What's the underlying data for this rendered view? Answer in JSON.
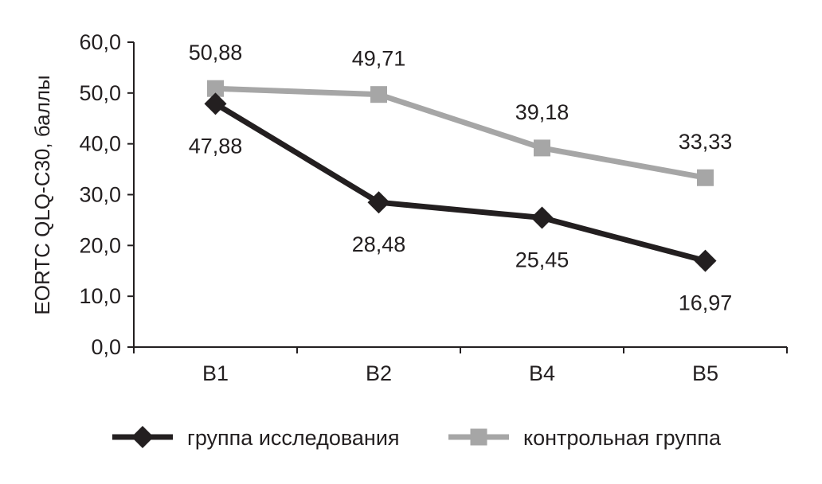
{
  "chart_data": {
    "type": "line",
    "categories": [
      "B1",
      "B2",
      "B4",
      "B5"
    ],
    "series": [
      {
        "name": "группа исследования",
        "values": [
          47.88,
          28.48,
          25.45,
          16.97
        ],
        "labels": [
          "47,88",
          "28,48",
          "25,45",
          "16,97"
        ],
        "color": "#231f20",
        "marker": "diamond",
        "label_position": "below"
      },
      {
        "name": "контрольная группа",
        "values": [
          50.88,
          49.71,
          39.18,
          33.33
        ],
        "labels": [
          "50,88",
          "49,71",
          "39,18",
          "33,33"
        ],
        "color": "#a6a6a6",
        "marker": "square",
        "label_position": "above"
      }
    ],
    "title": "",
    "xlabel": "",
    "ylabel": "EORTC QLQ-C30, баллы",
    "ylim": [
      0,
      60
    ],
    "yticks": [
      0,
      10,
      20,
      30,
      40,
      50,
      60
    ],
    "ytick_labels": [
      "0,0",
      "10,0",
      "20,0",
      "30,0",
      "40,0",
      "50,0",
      "60,0"
    ],
    "grid": false,
    "legend_position": "bottom"
  }
}
